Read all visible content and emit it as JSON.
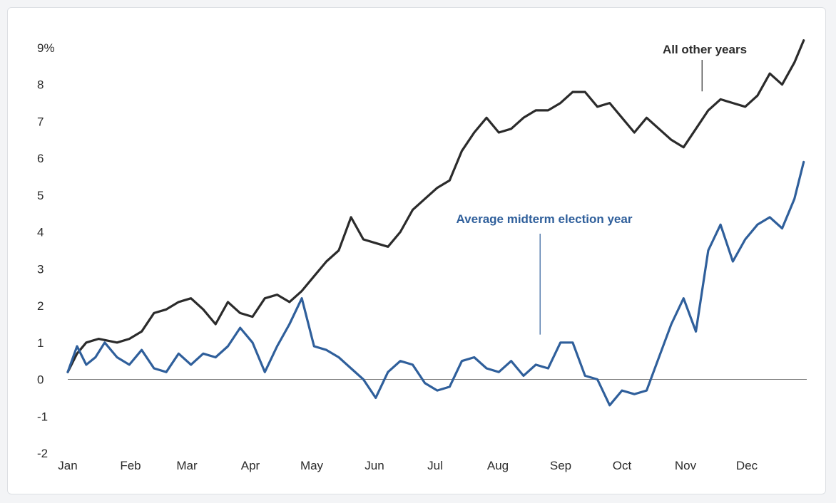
{
  "chart_data": {
    "type": "line",
    "title": "",
    "xlabel": "",
    "ylabel": "",
    "ylim": [
      -2,
      9.5
    ],
    "y_ticks": [
      -2,
      -1,
      0,
      1,
      2,
      3,
      4,
      5,
      6,
      7,
      8,
      9
    ],
    "y_tick_labels": [
      "-2",
      "-1",
      "0",
      "1",
      "2",
      "3",
      "4",
      "5",
      "6",
      "7",
      "8",
      "9%"
    ],
    "x_ticks": [
      "Jan",
      "Feb",
      "Mar",
      "Apr",
      "May",
      "Jun",
      "Jul",
      "Aug",
      "Sep",
      "Oct",
      "Nov",
      "Dec"
    ],
    "zero_line": true,
    "grid": false,
    "legend": "none",
    "series": [
      {
        "name": "All other years",
        "color": "#2b2b2b",
        "x": [
          0,
          0.15,
          0.3,
          0.5,
          0.8,
          1.0,
          1.2,
          1.4,
          1.6,
          1.8,
          2.0,
          2.2,
          2.4,
          2.6,
          2.8,
          3.0,
          3.2,
          3.4,
          3.6,
          3.8,
          4.0,
          4.2,
          4.4,
          4.6,
          4.8,
          5.0,
          5.2,
          5.4,
          5.6,
          5.8,
          6.0,
          6.2,
          6.4,
          6.6,
          6.8,
          7.0,
          7.2,
          7.4,
          7.6,
          7.8,
          8.0,
          8.2,
          8.4,
          8.6,
          8.8,
          9.0,
          9.2,
          9.4,
          9.6,
          9.8,
          10.0,
          10.2,
          10.4,
          10.6,
          10.8,
          11.0,
          11.2,
          11.4,
          11.6,
          11.8,
          11.95
        ],
        "values": [
          0.2,
          0.7,
          1.0,
          1.1,
          1.0,
          1.1,
          1.3,
          1.8,
          1.9,
          2.1,
          2.2,
          1.9,
          1.5,
          2.1,
          1.8,
          1.7,
          2.2,
          2.3,
          2.1,
          2.4,
          2.8,
          3.2,
          3.5,
          4.4,
          3.8,
          3.7,
          3.6,
          4.0,
          4.6,
          4.9,
          5.2,
          5.4,
          6.2,
          6.7,
          7.1,
          6.7,
          6.8,
          7.1,
          7.3,
          7.3,
          7.5,
          7.8,
          7.8,
          7.4,
          7.5,
          7.1,
          6.7,
          7.1,
          6.8,
          6.5,
          6.3,
          6.8,
          7.3,
          7.6,
          7.5,
          7.4,
          7.7,
          8.3,
          8.0,
          8.6,
          9.2
        ]
      },
      {
        "name": "Average midterm election year",
        "color": "#2f5f9b",
        "x": [
          0,
          0.15,
          0.3,
          0.45,
          0.6,
          0.8,
          1.0,
          1.2,
          1.4,
          1.6,
          1.8,
          2.0,
          2.2,
          2.4,
          2.6,
          2.8,
          3.0,
          3.2,
          3.4,
          3.6,
          3.8,
          4.0,
          4.2,
          4.4,
          4.6,
          4.8,
          5.0,
          5.2,
          5.4,
          5.6,
          5.8,
          6.0,
          6.2,
          6.4,
          6.6,
          6.8,
          7.0,
          7.2,
          7.4,
          7.6,
          7.8,
          8.0,
          8.2,
          8.4,
          8.6,
          8.8,
          9.0,
          9.2,
          9.4,
          9.6,
          9.8,
          10.0,
          10.2,
          10.4,
          10.6,
          10.8,
          11.0,
          11.2,
          11.4,
          11.6,
          11.8,
          11.95
        ],
        "values": [
          0.2,
          0.9,
          0.4,
          0.6,
          1.0,
          0.6,
          0.4,
          0.8,
          0.3,
          0.2,
          0.7,
          0.4,
          0.7,
          0.6,
          0.9,
          1.4,
          1.0,
          0.2,
          0.9,
          1.5,
          2.2,
          0.9,
          0.8,
          0.6,
          0.3,
          0.0,
          -0.5,
          0.2,
          0.5,
          0.4,
          -0.1,
          -0.3,
          -0.2,
          0.5,
          0.6,
          0.3,
          0.2,
          0.5,
          0.1,
          0.4,
          0.3,
          1.0,
          1.0,
          0.1,
          0.0,
          -0.7,
          -0.3,
          -0.4,
          -0.3,
          0.6,
          1.5,
          2.2,
          1.3,
          3.5,
          4.2,
          3.2,
          3.8,
          4.2,
          4.4,
          4.1,
          4.9,
          5.9
        ]
      }
    ],
    "annotations": [
      {
        "text": "All other years",
        "series": 0,
        "x": 10.3,
        "y": 7.7
      },
      {
        "text": "Average midterm election year",
        "series": 1,
        "x": 7.67,
        "y": 1.1
      }
    ]
  }
}
